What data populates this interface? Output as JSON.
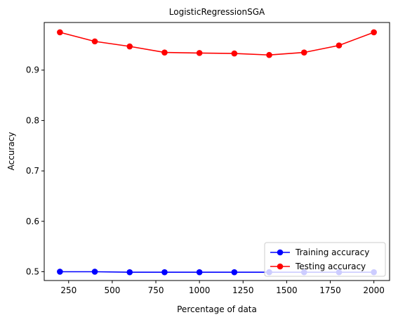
{
  "chart_data": {
    "type": "line",
    "title": "LogisticRegressionSGA",
    "xlabel": "Percentage of data",
    "ylabel": "Accuracy",
    "x": [
      200,
      400,
      600,
      800,
      1000,
      1200,
      1400,
      1600,
      1800,
      2000
    ],
    "xlim": [
      110,
      2090
    ],
    "ylim": [
      0.4825,
      0.9945
    ],
    "xticks": [
      250,
      500,
      750,
      1000,
      1250,
      1500,
      1750,
      2000
    ],
    "xtick_labels": [
      "250",
      "500",
      "750",
      "1000",
      "1250",
      "1500",
      "1750",
      "2000"
    ],
    "yticks": [
      0.5,
      0.6,
      0.7,
      0.8,
      0.9
    ],
    "ytick_labels": [
      "0.5",
      "0.6",
      "0.7",
      "0.8",
      "0.9"
    ],
    "grid": false,
    "legend": "lower-right",
    "series": [
      {
        "name": "Training accuracy",
        "color": "#0000ff",
        "marker": "circle",
        "values": [
          0.5,
          0.5,
          0.499,
          0.499,
          0.499,
          0.499,
          0.499,
          0.499,
          0.499,
          0.499
        ]
      },
      {
        "name": "Testing accuracy",
        "color": "#ff0000",
        "marker": "circle",
        "values": [
          0.975,
          0.957,
          0.947,
          0.935,
          0.934,
          0.933,
          0.93,
          0.935,
          0.949,
          0.975
        ]
      }
    ]
  }
}
